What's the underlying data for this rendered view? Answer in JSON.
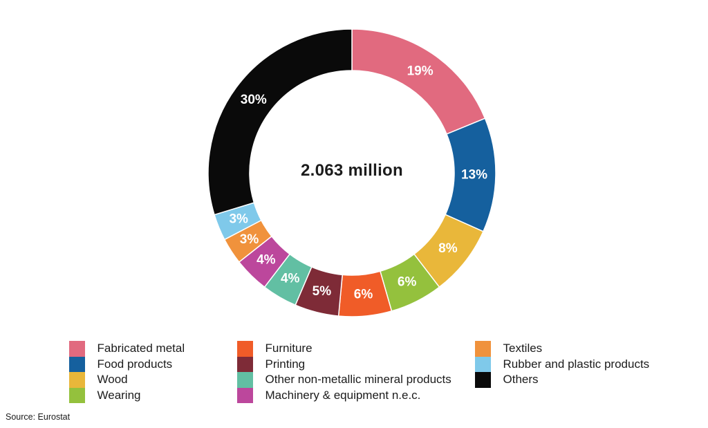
{
  "chart_data": {
    "type": "pie",
    "subtype": "donut",
    "title": "",
    "center_label": "2.063 million",
    "source": "Source: Eurostat",
    "unit": "%",
    "legend_position": "bottom",
    "segments": [
      {
        "label": "Fabricated metal",
        "value": 19,
        "display": "19%",
        "color": "#e16a7f"
      },
      {
        "label": "Food products",
        "value": 13,
        "display": "13%",
        "color": "#15609e"
      },
      {
        "label": "Wood",
        "value": 8,
        "display": "8%",
        "color": "#e9b73a"
      },
      {
        "label": "Wearing",
        "value": 6,
        "display": "6%",
        "color": "#94c13d"
      },
      {
        "label": "Furniture",
        "value": 6,
        "display": "6%",
        "color": "#f05c28"
      },
      {
        "label": "Printing",
        "value": 5,
        "display": "5%",
        "color": "#7e2b37"
      },
      {
        "label": "Other non-metallic mineral products",
        "value": 4,
        "display": "4%",
        "color": "#62bfa3"
      },
      {
        "label": "Machinery & equipment  n.e.c.",
        "value": 4,
        "display": "4%",
        "color": "#bc479c"
      },
      {
        "label": "Textiles",
        "value": 3,
        "display": "3%",
        "color": "#f0923c"
      },
      {
        "label": "Rubber and plastic products",
        "value": 3,
        "display": "3%",
        "color": "#7fc9ea"
      },
      {
        "label": "Others",
        "value": 30,
        "display": "30%",
        "color": "#0a0a0a"
      }
    ],
    "legend_columns": [
      [
        0,
        1,
        2,
        3
      ],
      [
        4,
        5,
        6,
        7
      ],
      [
        8,
        9,
        10
      ]
    ]
  }
}
